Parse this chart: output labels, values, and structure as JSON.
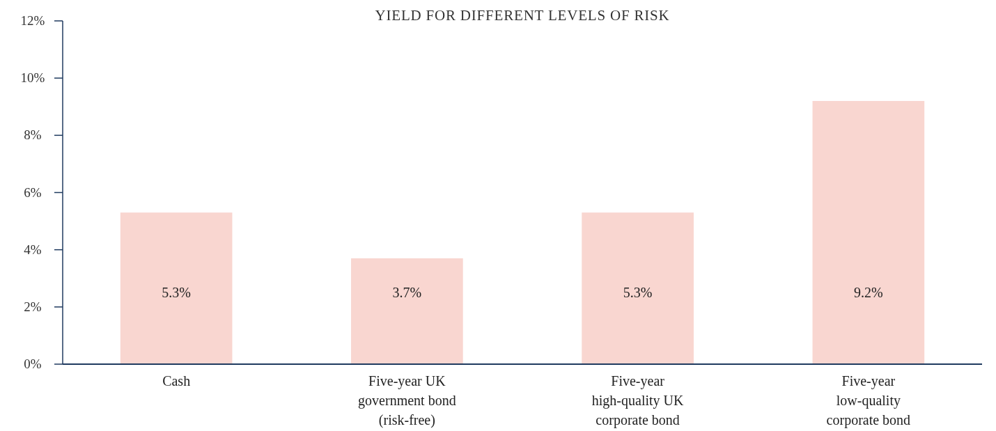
{
  "chart_data": {
    "type": "bar",
    "title": "YIELD FOR DIFFERENT LEVELS OF RISK",
    "categories": [
      "Cash",
      "Five-year UK government bond (risk-free)",
      "Five-year high-quality UK corporate bond",
      "Five-year low-quality corporate bond"
    ],
    "values": [
      5.3,
      3.7,
      5.3,
      9.2
    ],
    "color": "#f9d6d0",
    "value_labels": [
      "5.3%",
      "3.7%",
      "5.3%",
      "9.2%"
    ],
    "ylim": [
      0,
      12
    ],
    "yticks": [
      {
        "value": 0,
        "label": "0%"
      },
      {
        "value": 2,
        "label": "2%"
      },
      {
        "value": 4,
        "label": "4%"
      },
      {
        "value": 6,
        "label": "6%"
      },
      {
        "value": 8,
        "label": "8%"
      },
      {
        "value": 10,
        "label": "10%"
      },
      {
        "value": 12,
        "label": "12%"
      }
    ],
    "grid": false
  }
}
